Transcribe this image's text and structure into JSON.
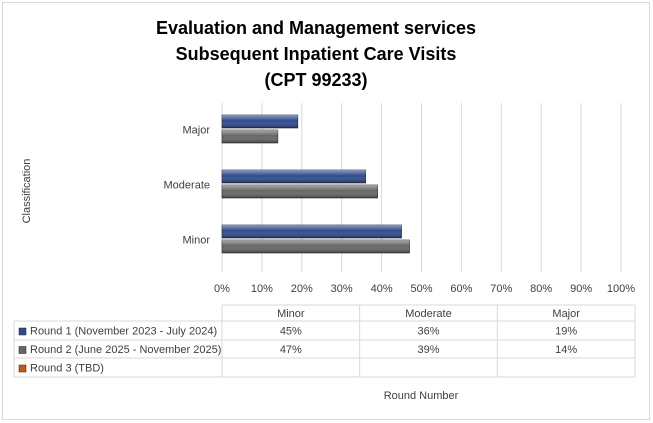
{
  "chart_data": {
    "type": "bar",
    "orientation": "horizontal",
    "title": [
      "Evaluation and Management services",
      "Subsequent Inpatient Care Visits",
      "(CPT 99233)"
    ],
    "y_label": "Classification",
    "x_label": "Round Number",
    "categories": [
      "Minor",
      "Moderate",
      "Major"
    ],
    "series": [
      {
        "name": "Round 1 (November 2023 - July 2024)",
        "color": "#2f4b8f",
        "values": [
          45,
          36,
          19
        ],
        "value_labels": [
          "45%",
          "36%",
          "19%"
        ]
      },
      {
        "name": "Round 2 (June 2025 - November 2025)",
        "color": "#666666",
        "values": [
          47,
          39,
          14
        ],
        "value_labels": [
          "47%",
          "39%",
          "14%"
        ]
      },
      {
        "name": "Round 3 (TBD)",
        "color": "#c55a11",
        "values": [
          null,
          null,
          null
        ],
        "value_labels": [
          null,
          null,
          null
        ]
      }
    ],
    "xlim": [
      0,
      100
    ],
    "xticks": [
      {
        "value": 0,
        "label": "0%"
      },
      {
        "value": 10,
        "label": "10%"
      },
      {
        "value": 20,
        "label": "20%"
      },
      {
        "value": 30,
        "label": "30%"
      },
      {
        "value": 40,
        "label": "40%"
      },
      {
        "value": 50,
        "label": "50%"
      },
      {
        "value": 60,
        "label": "60%"
      },
      {
        "value": 70,
        "label": "70%"
      },
      {
        "value": 80,
        "label": "80%"
      },
      {
        "value": 90,
        "label": "90%"
      },
      {
        "value": 100,
        "label": "100%"
      }
    ],
    "grid": true
  }
}
